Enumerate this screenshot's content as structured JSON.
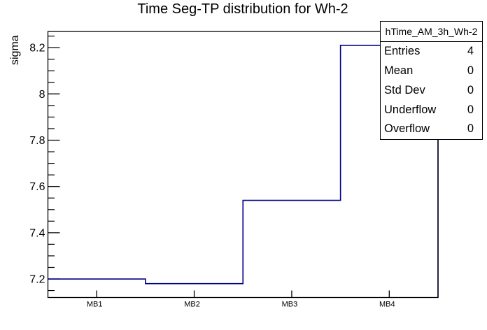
{
  "title": "Time Seg-TP distribution for Wh-2",
  "y_axis_label": "sigma",
  "stats_box": {
    "header": "hTime_AM_3h_Wh-2",
    "rows": [
      {
        "label": "Entries",
        "value": "4"
      },
      {
        "label": "Mean",
        "value": "0"
      },
      {
        "label": "Std Dev",
        "value": "0"
      },
      {
        "label": "Underflow",
        "value": "0"
      },
      {
        "label": "Overflow",
        "value": "0"
      }
    ]
  },
  "chart_data": {
    "type": "line",
    "style": "step-histogram",
    "title": "Time Seg-TP distribution for Wh-2",
    "categories": [
      "MB1",
      "MB2",
      "MB3",
      "MB4"
    ],
    "values": [
      7.2,
      7.18,
      7.54,
      8.21
    ],
    "xlabel": "",
    "ylabel": "sigma",
    "ylim": [
      7.12,
      8.27
    ],
    "yticks": [
      7.2,
      7.4,
      7.6,
      7.8,
      8.0,
      8.2
    ],
    "y_minor_step": 0.05,
    "grid": false,
    "legend": false,
    "line_color": "#00008b",
    "axis_color": "#000000",
    "background_color": "#ffffff"
  }
}
